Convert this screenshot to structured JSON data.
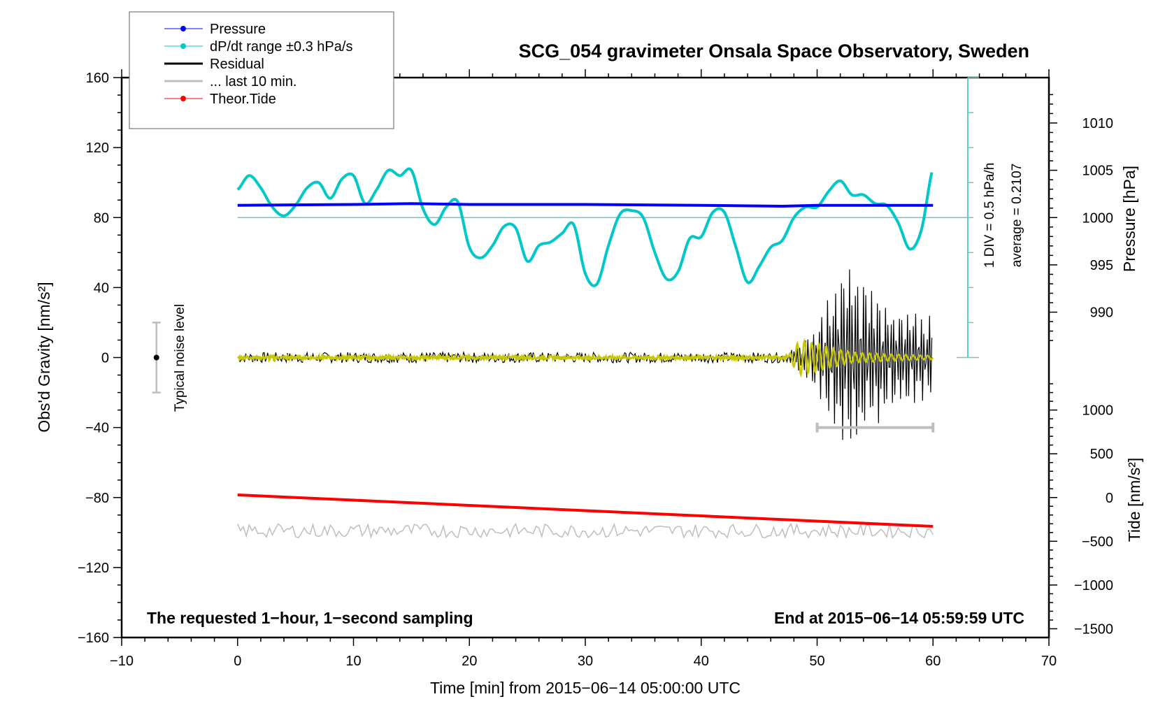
{
  "chart_data": {
    "type": "line",
    "title": "SCG_054 gravimeter Onsala Space Observatory, Sweden",
    "xlabel": "Time [min] from 2015−06−14 05:00:00 UTC",
    "ylabel_left": "Obs'd Gravity [nm/s²]",
    "ylabel_right_top": "Pressure [hPa]",
    "ylabel_right_bottom": "Tide [nm/s²]",
    "xlim": [
      -10,
      70
    ],
    "ylim_left": [
      -160,
      160
    ],
    "x_ticks": [
      "−10",
      "0",
      "10",
      "20",
      "30",
      "40",
      "50",
      "60",
      "70"
    ],
    "x_tick_values": [
      -10,
      0,
      10,
      20,
      30,
      40,
      50,
      60,
      70
    ],
    "y_ticks_left": [
      "160",
      "120",
      "80",
      "40",
      "0",
      "−40",
      "−80",
      "−120",
      "−160"
    ],
    "y_tick_values_left": [
      160,
      120,
      80,
      40,
      0,
      -40,
      -80,
      -120,
      -160
    ],
    "pressure_axis": {
      "ticks": [
        "1010",
        "1005",
        "1000",
        "995",
        "990"
      ],
      "tick_values": [
        1010,
        1005,
        1000,
        995,
        990
      ],
      "gravity_equivalent_of_1000": 80,
      "hPa_per_gravity_unit": 0.185
    },
    "tide_axis": {
      "ticks": [
        "1000",
        "500",
        "0",
        "−500",
        "−1000",
        "−1500"
      ],
      "tick_values": [
        1000,
        500,
        0,
        -500,
        -1000,
        -1500
      ],
      "gravity_equivalent_of_0": -80,
      "tide_per_gravity_unit": 20
    },
    "grid": false,
    "legend_position": "top-left",
    "legend": [
      {
        "label": "Pressure",
        "color": "#0000ff",
        "marker": "dot"
      },
      {
        "label": "dP/dt range ±0.3 hPa/s",
        "color": "#00c8c8",
        "marker": "dot"
      },
      {
        "label": "Residual",
        "color": "#000000",
        "marker": "line"
      },
      {
        "label": "... last 10 min.",
        "color": "#bebebe",
        "marker": "line"
      },
      {
        "label": "Theor.Tide",
        "color": "#ff0000",
        "marker": "dot"
      }
    ],
    "series": [
      {
        "name": "Pressure",
        "color": "#0000ff",
        "unit": "gravity-plot units",
        "x": [
          0,
          10,
          15,
          20,
          30,
          40,
          47,
          50,
          55,
          60
        ],
        "y": [
          87,
          87.5,
          88,
          87.5,
          87.5,
          87,
          86.5,
          87,
          87,
          87
        ]
      },
      {
        "name": "dP/dt",
        "color": "#00c8c8",
        "unit": "gravity-plot units",
        "x": [
          0,
          1,
          2,
          3,
          4,
          5,
          6,
          7,
          8,
          9,
          10,
          11,
          12,
          13,
          14,
          15,
          16,
          17,
          18,
          19,
          20,
          21,
          22,
          23,
          24,
          25,
          26,
          27,
          28,
          29,
          30,
          31,
          32,
          33,
          34,
          35,
          36,
          37,
          38,
          39,
          40,
          41,
          42,
          43,
          44,
          45,
          46,
          47,
          48,
          49,
          50,
          51,
          52,
          53,
          54,
          55,
          56,
          57,
          58,
          59,
          60
        ],
        "y": [
          96,
          104,
          97,
          86,
          81,
          87,
          97,
          100,
          91,
          102,
          104,
          88,
          96,
          107,
          104,
          107,
          85,
          76,
          86,
          89,
          63,
          57,
          64,
          75,
          74,
          55,
          64,
          66,
          71,
          76,
          48,
          42,
          64,
          82,
          84,
          80,
          60,
          45,
          49,
          68,
          69,
          83,
          83,
          63,
          43,
          52,
          63,
          67,
          80,
          86,
          86,
          95,
          101,
          93,
          93,
          88,
          87,
          77,
          62,
          73,
          108
        ]
      },
      {
        "name": "Residual",
        "color": "#000000",
        "unit": "nm/s²",
        "description": "noise about ±3 nm/s² until ~47.5 min, then seismic wave train growing to about ±65 nm/s² near 53 min and decaying to about ±30 by 60 min",
        "x": [
          0,
          47.5,
          49,
          50,
          51,
          52,
          53,
          54,
          55,
          57,
          60
        ],
        "y_amplitude": [
          3,
          3,
          12,
          20,
          35,
          50,
          65,
          55,
          40,
          28,
          25
        ]
      },
      {
        "name": "Filtered residual",
        "color": "#c8c800",
        "unit": "nm/s²",
        "x": [
          0,
          47.5,
          48.5,
          50,
          51,
          53,
          56,
          60
        ],
        "y_amplitude": [
          1,
          1,
          10,
          8,
          6,
          3,
          2,
          1
        ]
      },
      {
        "name": "... last 10 min.",
        "color": "#bebebe",
        "unit": "nm/s²",
        "description": "noise reference trace centered near −99 with amplitude ~±4",
        "x": [
          0,
          60
        ],
        "y": [
          -99,
          -99
        ]
      },
      {
        "name": "Theor.Tide",
        "color": "#ff0000",
        "unit": "nm/s² tide",
        "x": [
          0,
          60
        ],
        "y_tide": [
          30,
          -330
        ],
        "y": [
          -78.5,
          -96.5
        ]
      }
    ],
    "annotations": {
      "noise_level_label": "Typical noise level",
      "noise_level_range": [
        -20,
        20
      ],
      "noise_level_x": -7,
      "last_10min_bar": {
        "x_start": 50,
        "x_end": 60,
        "y": -40
      },
      "pressure_reference_level": 80,
      "dpdt_scale_label": "1 DIV = 0.5 hPa/h",
      "average_label": "average = 0.2107",
      "dpdt_axis_x": 63,
      "dpdt_axis_range": [
        0,
        160
      ],
      "footer_left": "The requested 1−hour, 1−second sampling",
      "footer_right": "End at 2015−06−14 05:59:59 UTC"
    }
  }
}
